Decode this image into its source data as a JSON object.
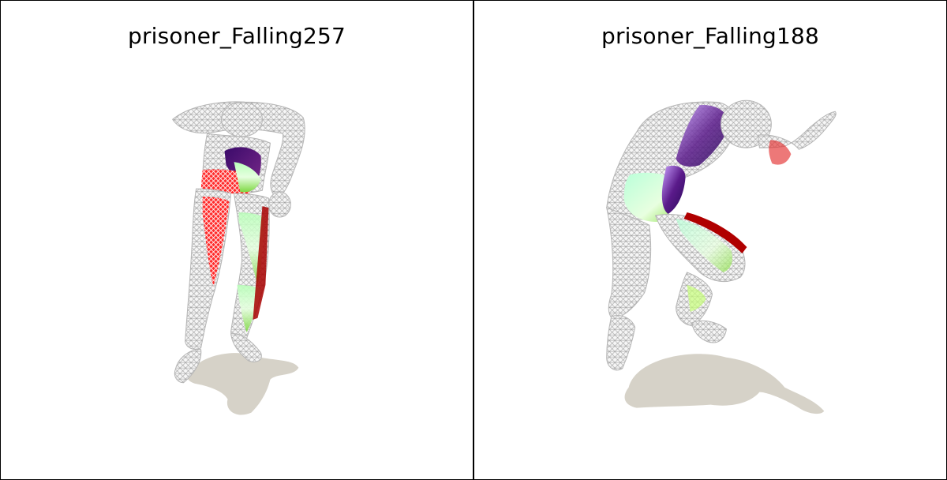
{
  "panels": [
    {
      "title": "prisoner_Falling257"
    },
    {
      "title": "prisoner_Falling188"
    }
  ],
  "colors": {
    "background": "#ffffff",
    "frame": "#000000",
    "mesh": "#b8b8b8",
    "shadow": "#d6d2c8",
    "highlight_red": "#d40000",
    "highlight_green": "#7dff8a",
    "highlight_purple": "#5a1a7a"
  }
}
